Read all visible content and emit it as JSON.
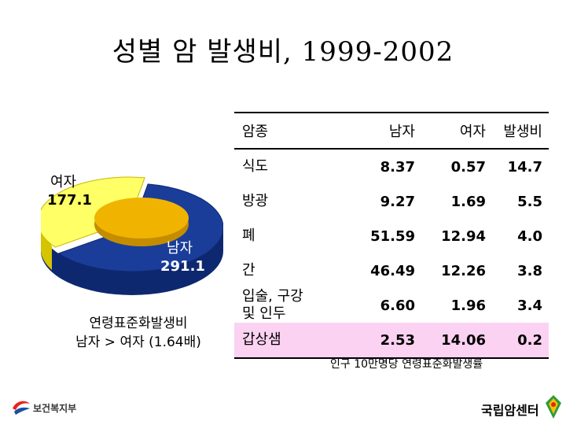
{
  "title": "성별 암 발생비, 1999-2002",
  "pie": {
    "female_label": "여자",
    "female_value": "177.1",
    "male_label": "남자",
    "male_value": "291.1",
    "colors": {
      "female": "#ffff66",
      "male": "#1a3d9a",
      "center": "#f0b400"
    }
  },
  "note": {
    "line1": "연령표준화발생비",
    "line2": "남자 > 여자 (1.64배)"
  },
  "table": {
    "headers": [
      "암종",
      "남자",
      "여자",
      "발생비"
    ],
    "rows": [
      {
        "name": [
          "식도"
        ],
        "male": "8.37",
        "female": "0.57",
        "ratio": "14.7"
      },
      {
        "name": [
          "방광"
        ],
        "male": "9.27",
        "female": "1.69",
        "ratio": "5.5"
      },
      {
        "name": [
          "폐"
        ],
        "male": "51.59",
        "female": "12.94",
        "ratio": "4.0"
      },
      {
        "name": [
          "간"
        ],
        "male": "46.49",
        "female": "12.26",
        "ratio": "3.8"
      },
      {
        "name": [
          "입술, 구강",
          "및 인두"
        ],
        "male": "6.60",
        "female": "1.96",
        "ratio": "3.4"
      },
      {
        "name": [
          "갑상샘"
        ],
        "male": "2.53",
        "female": "14.06",
        "ratio": "0.2"
      }
    ],
    "highlight_color": "#fbd2f2"
  },
  "footnote": "인구 10만명당 연령표준화발생률",
  "logos": {
    "left_text": "보건복지부",
    "right_text": "국립암센터"
  },
  "chart_data": {
    "type": "pie",
    "categories": [
      "여자",
      "남자"
    ],
    "values": [
      177.1,
      291.1
    ]
  }
}
